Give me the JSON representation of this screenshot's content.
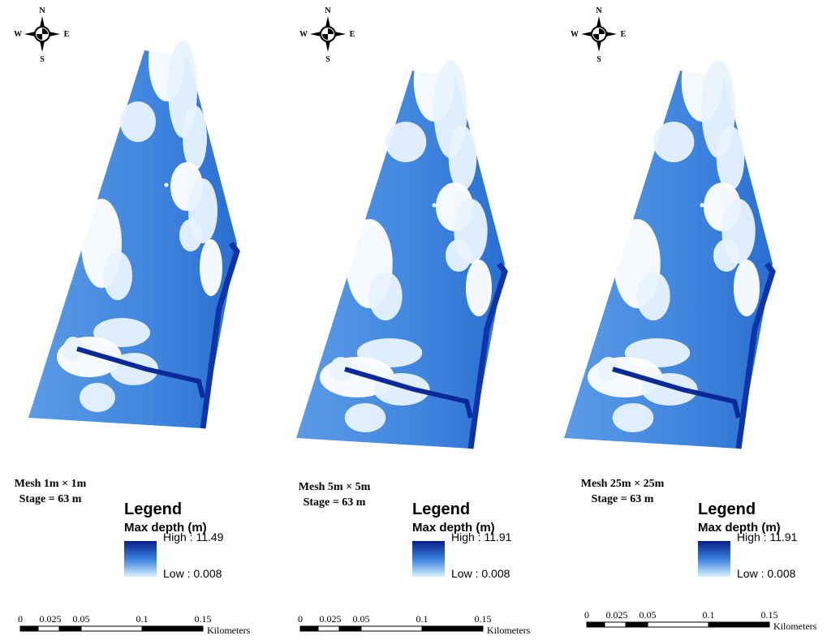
{
  "compass": {
    "north": "N",
    "south": "S",
    "west": "W",
    "east": "E"
  },
  "panels": [
    {
      "mesh": "Mesh 1m × 1m",
      "stage": "Stage = 63 m",
      "legend_title": "Legend",
      "legend_subtitle": "Max depth (m)",
      "high": "High : 11.49",
      "low": "Low : 0.008",
      "scale_ticks": [
        "0",
        "0.025",
        "0.05",
        "0.1",
        "0.15"
      ],
      "scale_unit": "Kilometers"
    },
    {
      "mesh": "Mesh 5m × 5m",
      "stage": "Stage = 63 m",
      "legend_title": "Legend",
      "legend_subtitle": "Max depth (m)",
      "high": "High : 11.91",
      "low": "Low : 0.008",
      "scale_ticks": [
        "0",
        "0.025",
        "0.05",
        "0.1",
        "0.15"
      ],
      "scale_unit": "Kilometers"
    },
    {
      "mesh": "Mesh 25m × 25m",
      "stage": "Stage = 63 m",
      "legend_title": "Legend",
      "legend_subtitle": "Max depth (m)",
      "high": "High : 11.91",
      "low": "Low : 0.008",
      "scale_ticks": [
        "0",
        "0.025",
        "0.05",
        "0.1",
        "0.15"
      ],
      "scale_unit": "Kilometers"
    }
  ]
}
